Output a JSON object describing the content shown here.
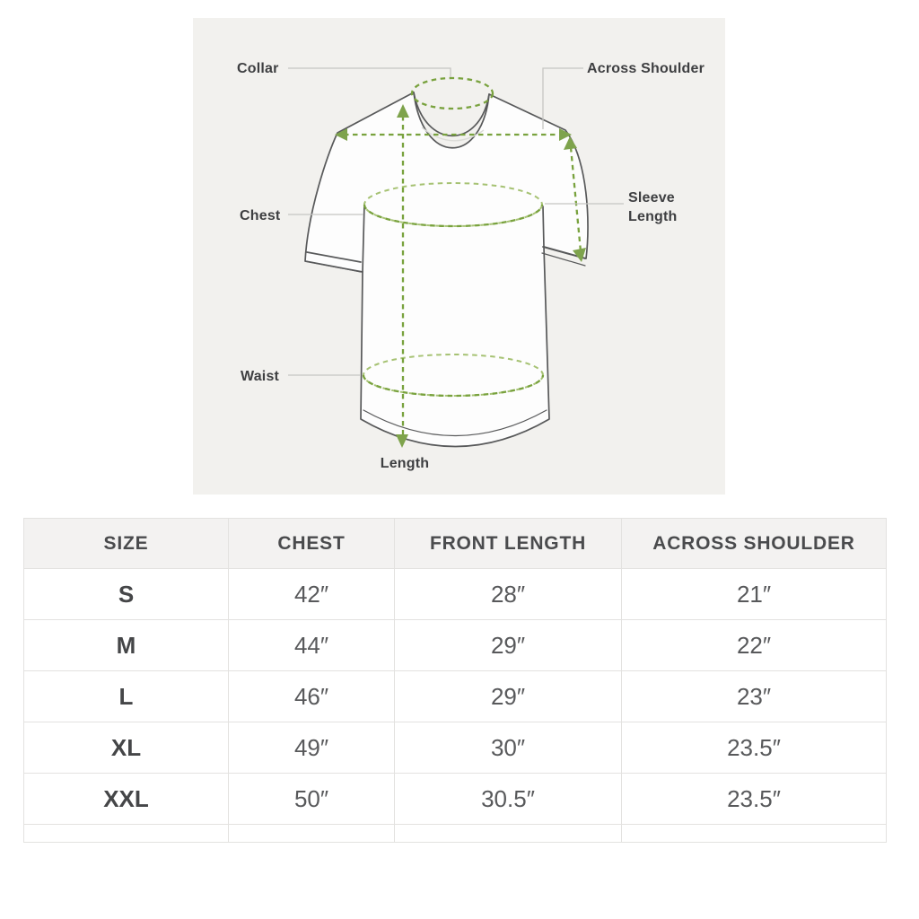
{
  "diagram": {
    "labels": {
      "collar": "Collar",
      "across_shoulder": "Across Shoulder",
      "chest": "Chest",
      "sleeve_length": "Sleeve Length",
      "waist": "Waist",
      "length": "Length"
    },
    "colors": {
      "panel_bg": "#f2f1ee",
      "measure_green": "#79a23e",
      "measure_green_light": "#a6c273",
      "arrow_green": "#7ea34c",
      "outline_gray": "#58595a",
      "leader_gray": "#c6c6c3",
      "shadow_gray": "#dcdcd8"
    }
  },
  "size_chart": {
    "columns": [
      "SIZE",
      "CHEST",
      "FRONT LENGTH",
      "ACROSS SHOULDER"
    ],
    "rows": [
      {
        "size": "S",
        "chest": "42″",
        "front_length": "28″",
        "across_shoulder": "21″"
      },
      {
        "size": "M",
        "chest": "44″",
        "front_length": "29″",
        "across_shoulder": "22″"
      },
      {
        "size": "L",
        "chest": "46″",
        "front_length": "29″",
        "across_shoulder": "23″"
      },
      {
        "size": "XL",
        "chest": "49″",
        "front_length": "30″",
        "across_shoulder": "23.5″"
      },
      {
        "size": "XXL",
        "chest": "50″",
        "front_length": "30.5″",
        "across_shoulder": "23.5″"
      }
    ]
  }
}
